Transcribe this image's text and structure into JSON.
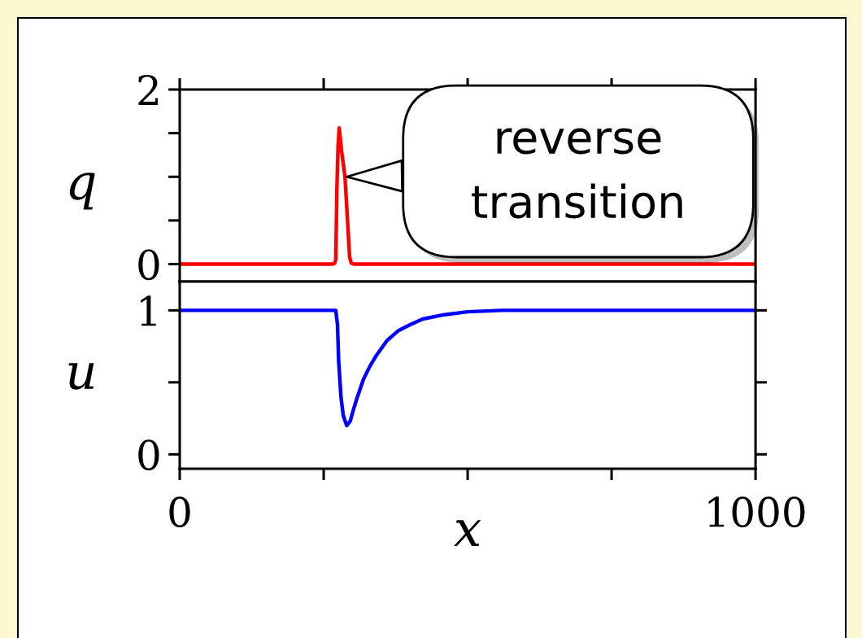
{
  "chart_data": [
    {
      "type": "line",
      "ylabel": "q",
      "x": [
        0,
        266,
        269,
        271,
        273,
        275,
        277,
        281,
        287,
        291,
        295,
        298,
        302,
        1000
      ],
      "series": [
        {
          "color": "#ff0000",
          "values": [
            0,
            0,
            0.01,
            0.05,
            0.88,
            1.35,
            1.56,
            1.3,
            1.0,
            0.55,
            0.08,
            0.01,
            0,
            0
          ]
        }
      ],
      "xlim": [
        0,
        1000
      ],
      "xticks": [
        0,
        {
          "value": 250,
          "label": null
        },
        {
          "value": 500,
          "label": null
        },
        {
          "value": 750,
          "label": null
        },
        1000
      ],
      "ylim": [
        -0.2,
        2
      ],
      "yticks": [
        0,
        {
          "value": 0.5,
          "label": null
        },
        {
          "value": 1,
          "label": null
        },
        {
          "value": 1.5,
          "label": null
        },
        2
      ],
      "tick_labels": "y",
      "annotations": [
        {
          "text": "reverse transition",
          "x": 290,
          "y": 1.0
        }
      ]
    },
    {
      "type": "line",
      "ylabel": "u",
      "xlabel": "x",
      "x": [
        0,
        271,
        274,
        276,
        280,
        284,
        290,
        296,
        301,
        307,
        319,
        330,
        342,
        360,
        380,
        400,
        422,
        460,
        500,
        560,
        1000
      ],
      "series": [
        {
          "color": "#0000ff",
          "values": [
            1,
            1,
            0.9,
            0.65,
            0.4,
            0.27,
            0.2,
            0.23,
            0.3,
            0.38,
            0.52,
            0.61,
            0.69,
            0.79,
            0.86,
            0.9,
            0.94,
            0.97,
            0.99,
            1,
            1
          ]
        }
      ],
      "xlim": [
        0,
        1000
      ],
      "xticks": [
        0,
        {
          "value": 250,
          "label": null
        },
        {
          "value": 500,
          "label": null
        },
        {
          "value": 750,
          "label": null
        },
        1000
      ],
      "ylim": [
        -0.1,
        1.2
      ],
      "yticks": [
        0,
        {
          "value": 0.5,
          "label": null
        },
        1
      ]
    }
  ]
}
